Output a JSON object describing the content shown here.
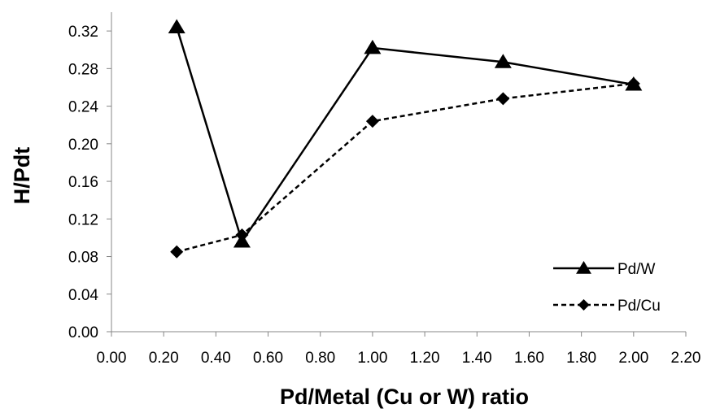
{
  "chart_data": {
    "type": "line",
    "title": "",
    "xlabel": "Pd/Metal (Cu or W) ratio",
    "ylabel": "H/Pdt",
    "xlim": [
      0,
      2.2
    ],
    "ylim": [
      0,
      0.34
    ],
    "x_ticks": [
      "0.00",
      "0.20",
      "0.40",
      "0.60",
      "0.80",
      "1.00",
      "1.20",
      "1.40",
      "1.60",
      "1.80",
      "2.00",
      "2.20"
    ],
    "y_ticks": [
      "0.00",
      "0.04",
      "0.08",
      "0.12",
      "0.16",
      "0.20",
      "0.24",
      "0.28",
      "0.32"
    ],
    "grid": false,
    "legend_position": "bottom-right",
    "series": [
      {
        "name": "Pd/W",
        "marker": "triangle",
        "line_style": "solid",
        "x": [
          0.25,
          0.5,
          1.0,
          1.5,
          2.0
        ],
        "y": [
          0.324,
          0.096,
          0.302,
          0.287,
          0.263
        ]
      },
      {
        "name": "Pd/Cu",
        "marker": "diamond",
        "line_style": "dashed",
        "x": [
          0.25,
          0.5,
          1.0,
          1.5,
          2.0
        ],
        "y": [
          0.085,
          0.103,
          0.224,
          0.248,
          0.264
        ]
      }
    ]
  }
}
